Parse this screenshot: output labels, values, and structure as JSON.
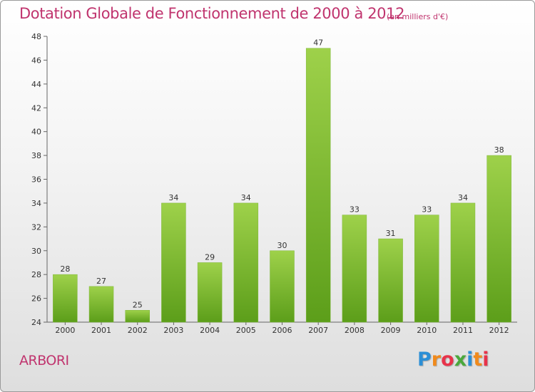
{
  "header": {
    "title": "Dotation Globale de Fonctionnement de 2000 à 2012",
    "subtitle": "(en milliers d'€)"
  },
  "footer": {
    "commune": "ARBORI",
    "logo_letters": [
      {
        "char": "P",
        "color": "#2b8fd6"
      },
      {
        "char": "r",
        "color": "#f08a1c"
      },
      {
        "char": "o",
        "color": "#e8334a"
      },
      {
        "char": "x",
        "color": "#4aa83c"
      },
      {
        "char": "i",
        "color": "#2b8fd6"
      },
      {
        "char": "t",
        "color": "#f08a1c"
      },
      {
        "char": "i",
        "color": "#e8334a"
      }
    ]
  },
  "colors": {
    "title": "#c0346e",
    "bar_light": "#9ed14a",
    "bar_dark": "#5c9e1a"
  },
  "chart_data": {
    "type": "bar",
    "title": "Dotation Globale de Fonctionnement de 2000 à 2012",
    "subtitle": "(en milliers d'€)",
    "categories": [
      "2000",
      "2001",
      "2002",
      "2003",
      "2004",
      "2005",
      "2006",
      "2007",
      "2008",
      "2009",
      "2010",
      "2011",
      "2012"
    ],
    "values": [
      28,
      27,
      25,
      34,
      29,
      34,
      30,
      47,
      33,
      31,
      33,
      34,
      38
    ],
    "ylim": [
      24,
      48
    ],
    "yticks": [
      24,
      26,
      28,
      30,
      32,
      34,
      36,
      38,
      40,
      42,
      44,
      46,
      48
    ],
    "grid": false,
    "legend": "none"
  }
}
